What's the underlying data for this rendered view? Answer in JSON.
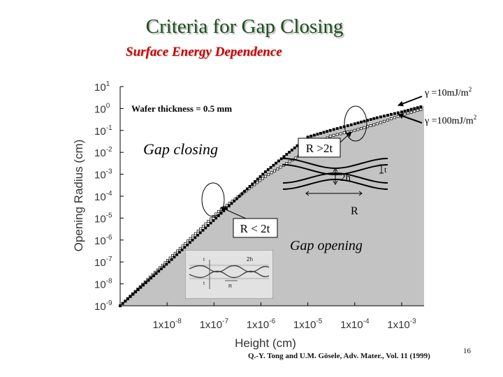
{
  "title": "Criteria for Gap Closing",
  "subtitle": "Surface Energy Dependence",
  "reference": "Q.-Y. Tong and U.M. Gösele, Adv. Mater., Vol. 11 (1999)",
  "slide_number": "16",
  "chart_data": {
    "type": "line",
    "xlabel": "Height (cm)",
    "ylabel": "Opening Radius (cm)",
    "x_scale": "log",
    "y_scale": "log",
    "xlim": [
      1e-09,
      0.003
    ],
    "ylim": [
      1e-09,
      10
    ],
    "x_ticks": [
      {
        "value": 1e-08,
        "mant": "1x10",
        "exp": "-8"
      },
      {
        "value": 1e-07,
        "mant": "1x10",
        "exp": "-7"
      },
      {
        "value": 1e-06,
        "mant": "1x10",
        "exp": "-6"
      },
      {
        "value": 1e-05,
        "mant": "1x10",
        "exp": "-5"
      },
      {
        "value": 0.0001,
        "mant": "1x10",
        "exp": "-4"
      },
      {
        "value": 0.001,
        "mant": "1x10",
        "exp": "-3"
      }
    ],
    "y_ticks": [
      {
        "value": 10,
        "mant": "10",
        "exp": "1"
      },
      {
        "value": 1,
        "mant": "10",
        "exp": "0"
      },
      {
        "value": 0.1,
        "mant": "10",
        "exp": "-1"
      },
      {
        "value": 0.01,
        "mant": "10",
        "exp": "-2"
      },
      {
        "value": 0.001,
        "mant": "10",
        "exp": "-3"
      },
      {
        "value": 0.0001,
        "mant": "10",
        "exp": "-4"
      },
      {
        "value": 1e-05,
        "mant": "10",
        "exp": "-5"
      },
      {
        "value": 1e-06,
        "mant": "10",
        "exp": "-6"
      },
      {
        "value": 1e-07,
        "mant": "10",
        "exp": "-7"
      },
      {
        "value": 1e-08,
        "mant": "10",
        "exp": "-8"
      },
      {
        "value": 1e-09,
        "mant": "10",
        "exp": "-9"
      }
    ],
    "series": [
      {
        "name": "γ =10mJ/m²",
        "style": "open-square-markers",
        "x": [
          1e-09,
          1.68e-08,
          1.25e-07,
          1.25e-06,
          1e-05,
          3e-05,
          0.0001,
          0.0003,
          0.001,
          0.003
        ],
        "y": [
          1e-09,
          3.2e-07,
          2e-05,
          0.0008,
          0.012,
          0.055,
          0.1,
          0.2,
          0.5,
          1.0
        ]
      },
      {
        "name": "γ =100mJ/m²",
        "style": "filled-square-markers",
        "x": [
          1e-09,
          1.1e-08,
          1.1e-07,
          1.25e-06,
          1e-05,
          3e-05,
          0.0001,
          0.0003,
          0.001,
          0.003
        ],
        "y": [
          1e-09,
          1e-07,
          1e-05,
          0.0013,
          0.05,
          0.1,
          0.2,
          0.38,
          0.7,
          1.3
        ]
      }
    ],
    "annotations": {
      "wafer_thickness": "Wafer thickness = 0.5 mm",
      "gamma_low_label": "γ =10mJ/m",
      "gamma_high_label": "γ =100mJ/m",
      "gamma_exp": "2",
      "gap_closing": "Gap closing",
      "gap_opening": "Gap opening",
      "r_greater": "R >2t",
      "r_less": "R < 2t",
      "two_h": "2h",
      "t": "t",
      "r": "R"
    },
    "inset": {
      "t_label": "t",
      "two_h": "2h",
      "r": "R"
    }
  }
}
